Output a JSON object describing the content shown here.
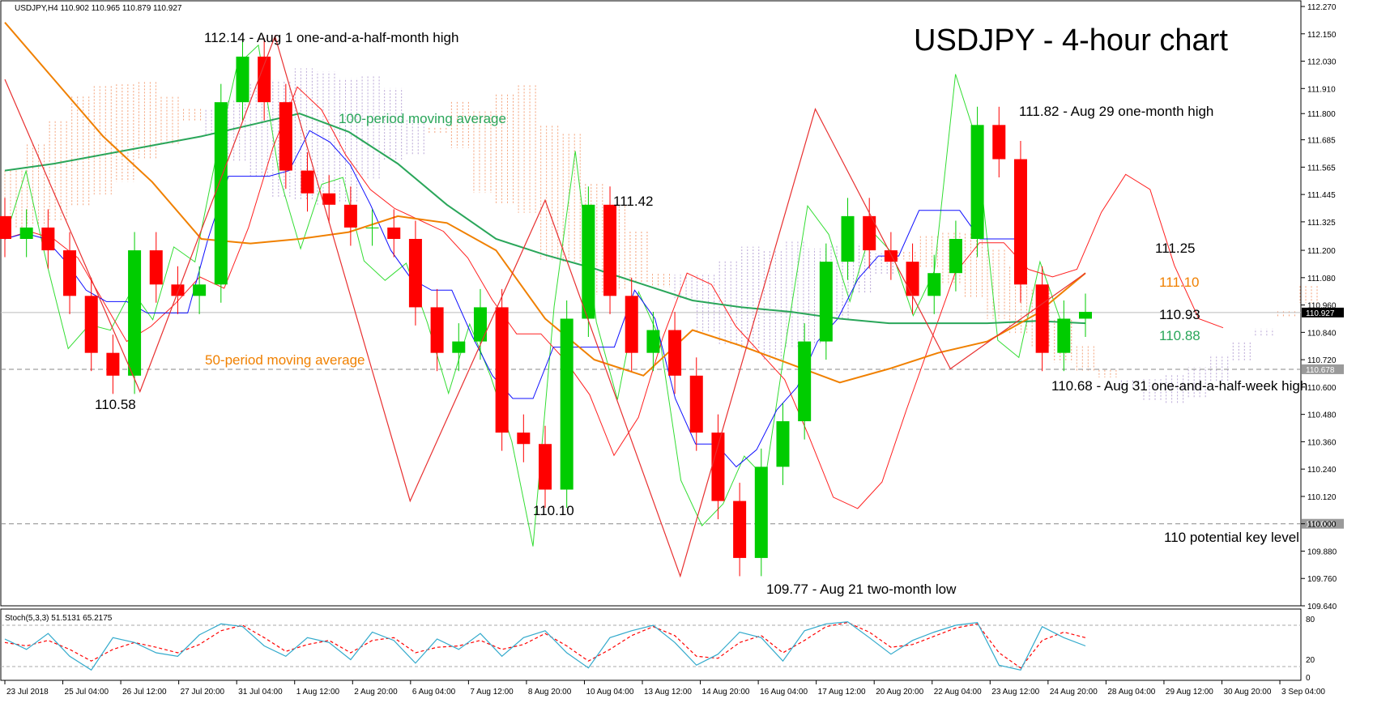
{
  "header": {
    "symbol_line": "USDJPY,H4  110.902 110.965 110.879 110.927",
    "title": "USDJPY - 4-hour chart"
  },
  "stoch": {
    "label": "Stoch(5,3,3) 51.5131 65.2175",
    "scale_labels": [
      "80",
      "20",
      "0"
    ]
  },
  "colors": {
    "bull": "#00cc00",
    "bear": "#ff0000",
    "ma50": "#f08000",
    "ma100": "#2aa65a",
    "tenkan": "#ff2020",
    "kijun": "#1010ff",
    "chikou": "#33dd33",
    "zigzag": "#e83030",
    "cloud_bull": "#f4a27a",
    "cloud_bear": "#b9a6d6",
    "stoch_main": "#33aacc",
    "stoch_signal": "#ff0000"
  },
  "annotations": [
    {
      "key": "high_aug1",
      "text": "112.14 - Aug 1 one-and-a-half-month high"
    },
    {
      "key": "ma100_label",
      "text": "100-period moving average"
    },
    {
      "key": "ma50_label",
      "text": "50-period moving average"
    },
    {
      "key": "low_jul26",
      "text": "110.58"
    },
    {
      "key": "low_aug13",
      "text": "110.10"
    },
    {
      "key": "high_aug14",
      "text": "111.42"
    },
    {
      "key": "low_aug21",
      "text": "109.77 - Aug 21 two-month low"
    },
    {
      "key": "high_aug29",
      "text": "111.82 - Aug 29 one-month high"
    },
    {
      "key": "lvl_11125",
      "text": "111.25"
    },
    {
      "key": "lvl_11110",
      "text": "111.10"
    },
    {
      "key": "lvl_11093",
      "text": "110.93"
    },
    {
      "key": "lvl_11088",
      "text": "110.88"
    },
    {
      "key": "high_aug31",
      "text": "110.68 - Aug 31 one-and-a-half-week high"
    },
    {
      "key": "key_110",
      "text": "110 potential key level"
    }
  ],
  "chart_data": {
    "type": "candlestick",
    "symbol": "USDJPY",
    "timeframe": "H4",
    "ylim": [
      109.64,
      112.27
    ],
    "y_ticks": [
      "112.270",
      "112.150",
      "112.030",
      "111.910",
      "111.800",
      "111.685",
      "111.565",
      "111.445",
      "111.325",
      "111.200",
      "111.080",
      "110.960",
      "110.840",
      "110.720",
      "110.600",
      "110.480",
      "110.360",
      "110.240",
      "110.120",
      "110.000",
      "109.880",
      "109.760",
      "109.640"
    ],
    "current_price": "110.927",
    "horizontal_levels": [
      {
        "value": 110.678,
        "label": "110.678"
      },
      {
        "value": 110.0,
        "label": "110.000"
      }
    ],
    "x_labels": [
      "23 Jul 2018",
      "25 Jul 04:00",
      "26 Jul 12:00",
      "27 Jul 20:00",
      "31 Jul 04:00",
      "1 Aug 12:00",
      "2 Aug 20:00",
      "6 Aug 04:00",
      "7 Aug 12:00",
      "8 Aug 20:00",
      "10 Aug 04:00",
      "13 Aug 12:00",
      "14 Aug 20:00",
      "16 Aug 04:00",
      "17 Aug 12:00",
      "20 Aug 20:00",
      "22 Aug 04:00",
      "23 Aug 12:00",
      "24 Aug 20:00",
      "28 Aug 04:00",
      "29 Aug 12:00",
      "30 Aug 20:00",
      "3 Sep 04:00"
    ],
    "swing_points": [
      {
        "label": "110.58",
        "value": 110.58
      },
      {
        "label": "112.14",
        "value": 112.14
      },
      {
        "label": "110.10",
        "value": 110.1
      },
      {
        "label": "111.42",
        "value": 111.42
      },
      {
        "label": "109.77",
        "value": 109.77
      },
      {
        "label": "111.82",
        "value": 111.82
      },
      {
        "label": "110.68",
        "value": 110.68
      }
    ],
    "zigzag": [
      111.95,
      110.58,
      112.14,
      110.1,
      111.42,
      109.77,
      111.82,
      110.68,
      111.1
    ],
    "ma50": [
      112.2,
      111.95,
      111.7,
      111.5,
      111.25,
      111.23,
      111.25,
      111.28,
      111.35,
      111.32,
      111.2,
      110.9,
      110.72,
      110.65,
      110.85,
      110.78,
      110.7,
      110.62,
      110.68,
      110.75,
      110.8,
      110.92,
      111.1
    ],
    "ma100": [
      111.55,
      111.58,
      111.62,
      111.66,
      111.7,
      111.75,
      111.8,
      111.72,
      111.58,
      111.4,
      111.25,
      111.18,
      111.12,
      111.05,
      110.98,
      110.95,
      110.93,
      110.9,
      110.88,
      110.88,
      110.88,
      110.89,
      110.88
    ],
    "closes": [
      111.25,
      111.3,
      111.2,
      111.0,
      110.75,
      110.65,
      111.2,
      111.05,
      111.0,
      111.05,
      111.85,
      112.05,
      111.85,
      111.55,
      111.45,
      111.4,
      111.3,
      111.3,
      111.25,
      110.95,
      110.75,
      110.8,
      110.95,
      110.4,
      110.35,
      110.15,
      110.9,
      111.4,
      111.0,
      110.75,
      110.85,
      110.65,
      110.4,
      110.1,
      109.85,
      110.25,
      110.45,
      110.8,
      111.15,
      111.35,
      111.2,
      111.15,
      111.0,
      111.1,
      111.25,
      111.75,
      111.6,
      111.05,
      110.75,
      110.9,
      110.93
    ],
    "stoch_main": [
      60,
      45,
      68,
      35,
      15,
      62,
      55,
      40,
      35,
      66,
      82,
      78,
      50,
      35,
      62,
      55,
      30,
      70,
      58,
      25,
      60,
      45,
      68,
      35,
      62,
      72,
      40,
      18,
      62,
      72,
      80,
      55,
      22,
      38,
      70,
      62,
      28,
      72,
      82,
      85,
      62,
      38,
      58,
      70,
      80,
      84,
      22,
      15,
      78,
      62,
      50
    ],
    "stoch_signal": [
      55,
      50,
      58,
      45,
      28,
      45,
      55,
      48,
      40,
      52,
      72,
      80,
      62,
      42,
      52,
      58,
      40,
      58,
      62,
      40,
      48,
      50,
      58,
      45,
      52,
      68,
      50,
      28,
      45,
      65,
      78,
      65,
      35,
      32,
      55,
      65,
      40,
      58,
      78,
      84,
      70,
      48,
      52,
      64,
      76,
      82,
      40,
      18,
      58,
      70,
      62
    ],
    "stoch_levels": [
      80,
      20
    ]
  }
}
